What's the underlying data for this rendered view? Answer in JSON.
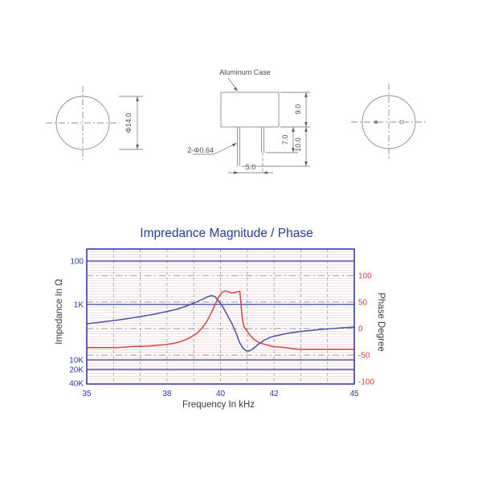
{
  "drawing": {
    "labels": {
      "aluminum_case": "Aluminum Case",
      "pin_diameter": "2-Φ0.64",
      "pin_spacing": "5.0",
      "case_height": "9.0",
      "pin_length_short": "7.0",
      "pin_length_total": "10.0",
      "case_diameter": "Φ14.0"
    }
  },
  "chart_data": {
    "type": "line",
    "title": "Impredance Magnitude / Phase",
    "xlabel": "Frequency In kHz",
    "ylabel_left": "Impedance In Ω",
    "ylabel_right": "Phase Degree",
    "x_range": [
      35,
      45
    ],
    "x_ticks": [
      35,
      38,
      40,
      42,
      45
    ],
    "x_minor_step_khz": 1,
    "grid": "on",
    "legend": "none",
    "y_left_scale": "log-inverted-down",
    "y_left_ticks": [
      {
        "label": "100",
        "value": 100,
        "gridline": true
      },
      {
        "label": "1K",
        "value": 1000,
        "gridline": true
      },
      {
        "label": "10K",
        "value": 10000,
        "gridline": true
      },
      {
        "label": "20K",
        "value": 20000,
        "gridline": true
      },
      {
        "label": "40K",
        "value": 40000,
        "gridline": false
      }
    ],
    "y_right_range": [
      -100,
      100
    ],
    "y_right_ticks": [
      {
        "label": "100",
        "value": 100,
        "gridline": true
      },
      {
        "label": "50",
        "value": 50,
        "gridline": true
      },
      {
        "label": "0",
        "value": 0,
        "gridline": true
      },
      {
        "label": "-50",
        "value": -50,
        "gridline": true
      },
      {
        "label": "-100",
        "value": -100,
        "gridline": false
      }
    ],
    "minor_grid_step_deg": 5,
    "colors": {
      "title": "#2b3a94",
      "frame": "#2e3192",
      "major_grid_blue": "#3c3f99",
      "dashed_grid_gray": "#8f8f9a",
      "minor_grid_pink": "#eac6c6",
      "vertical_dash_grid": "#9aa0b8",
      "axis_left_text": "#2b3a94",
      "axis_right_text": "#cc4444",
      "axis_title_text": "#3a3a3a",
      "impedance_line": "#4a52a6",
      "phase_line": "#d44545"
    },
    "series": [
      {
        "name": "Impedance Magnitude",
        "axis": "left",
        "units": "ohm",
        "color": "#4a52a6",
        "points": [
          [
            35.0,
            2230
          ],
          [
            35.66,
            2050
          ],
          [
            36.26,
            1880
          ],
          [
            36.86,
            1700
          ],
          [
            37.46,
            1520
          ],
          [
            37.91,
            1370
          ],
          [
            38.36,
            1220
          ],
          [
            38.72,
            1070
          ],
          [
            39.02,
            920
          ],
          [
            39.26,
            790
          ],
          [
            39.44,
            700
          ],
          [
            39.59,
            640
          ],
          [
            39.68,
            625
          ],
          [
            39.8,
            665
          ],
          [
            39.92,
            810
          ],
          [
            40.07,
            1070
          ],
          [
            40.25,
            1540
          ],
          [
            40.43,
            2230
          ],
          [
            40.59,
            3330
          ],
          [
            40.71,
            4800
          ],
          [
            40.83,
            6060
          ],
          [
            40.95,
            6810
          ],
          [
            41.07,
            6930
          ],
          [
            41.22,
            6270
          ],
          [
            41.4,
            5310
          ],
          [
            41.61,
            4490
          ],
          [
            41.85,
            3930
          ],
          [
            42.12,
            3620
          ],
          [
            42.57,
            3270
          ],
          [
            43.17,
            3010
          ],
          [
            43.77,
            2810
          ],
          [
            44.37,
            2680
          ],
          [
            45.0,
            2550
          ]
        ]
      },
      {
        "name": "Phase",
        "axis": "right",
        "units": "deg",
        "color": "#d44545",
        "points": [
          [
            35.0,
            -36
          ],
          [
            35.51,
            -36
          ],
          [
            36.11,
            -36
          ],
          [
            36.71,
            -34
          ],
          [
            37.31,
            -33
          ],
          [
            37.76,
            -31
          ],
          [
            38.12,
            -29
          ],
          [
            38.42,
            -26
          ],
          [
            38.69,
            -21
          ],
          [
            38.93,
            -15
          ],
          [
            39.14,
            -8
          ],
          [
            39.32,
            2
          ],
          [
            39.47,
            12
          ],
          [
            39.62,
            26
          ],
          [
            39.77,
            42
          ],
          [
            39.92,
            59
          ],
          [
            40.07,
            69
          ],
          [
            40.19,
            71
          ],
          [
            40.31,
            69
          ],
          [
            40.43,
            67
          ],
          [
            40.55,
            68
          ],
          [
            40.67,
            70
          ],
          [
            40.72,
            70
          ],
          [
            40.76,
            50
          ],
          [
            40.79,
            30
          ],
          [
            40.83,
            15
          ],
          [
            40.88,
            3
          ],
          [
            40.97,
            -3
          ],
          [
            41.09,
            -12
          ],
          [
            41.24,
            -20
          ],
          [
            41.42,
            -26
          ],
          [
            41.66,
            -30
          ],
          [
            41.96,
            -34
          ],
          [
            42.41,
            -36
          ],
          [
            42.92,
            -39
          ],
          [
            43.62,
            -39
          ],
          [
            44.37,
            -39
          ],
          [
            45.0,
            -39
          ]
        ]
      }
    ]
  }
}
